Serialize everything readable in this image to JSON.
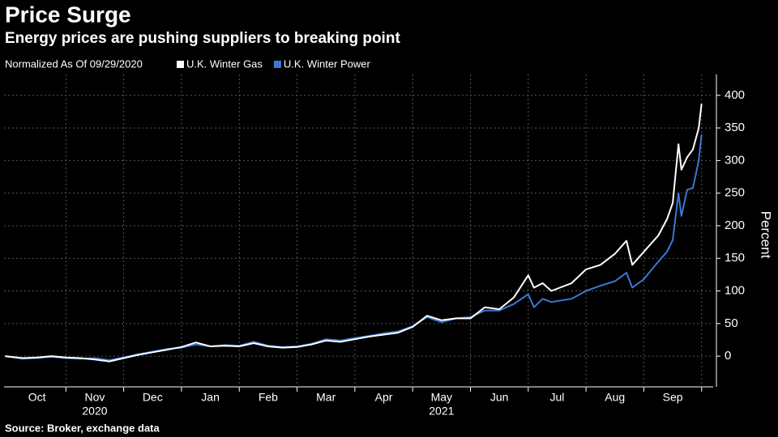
{
  "chart_data": {
    "type": "line",
    "title": "Price Surge",
    "subtitle": "Energy prices are pushing suppliers to breaking point",
    "legend_title": "Normalized As Of 09/29/2020",
    "y_label": "Percent",
    "source": "Source: Broker, exchange data",
    "categories": [
      "Oct",
      "Nov",
      "Dec",
      "Jan",
      "Feb",
      "Mar",
      "Apr",
      "May",
      "Jun",
      "Jul",
      "Aug",
      "Sep"
    ],
    "year_labels": [
      null,
      "2020",
      null,
      null,
      null,
      null,
      null,
      "2021",
      null,
      null,
      null,
      null
    ],
    "x": [
      -0.05,
      0.25,
      0.5,
      0.75,
      1,
      1.25,
      1.5,
      1.75,
      2,
      2.25,
      2.5,
      2.75,
      3,
      3.25,
      3.5,
      3.75,
      4,
      4.25,
      4.5,
      4.75,
      5,
      5.25,
      5.5,
      5.75,
      6,
      6.25,
      6.5,
      6.75,
      7,
      7.25,
      7.5,
      7.75,
      8,
      8.25,
      8.5,
      8.75,
      9,
      9.1,
      9.25,
      9.4,
      9.75,
      10,
      10.25,
      10.5,
      10.7,
      10.8,
      11,
      11.25,
      11.4,
      11.5,
      11.6,
      11.65,
      11.75,
      11.85,
      11.95,
      12
    ],
    "xlim": [
      -0.07,
      12.2
    ],
    "series": [
      {
        "name": "U.K. Winter Gas",
        "color": "#ffffff",
        "values": [
          0,
          -3,
          -2,
          0,
          -2,
          -3,
          -5,
          -8,
          -3,
          2,
          6,
          10,
          14,
          21,
          15,
          16,
          15,
          20,
          15,
          13,
          14,
          18,
          24,
          22,
          26,
          30,
          33,
          36,
          45,
          62,
          55,
          58,
          58,
          75,
          72,
          90,
          124,
          105,
          112,
          100,
          112,
          133,
          140,
          157,
          177,
          140,
          160,
          185,
          210,
          235,
          325,
          286,
          305,
          317,
          350,
          387
        ]
      },
      {
        "name": "U.K. Winter Power",
        "color": "#3a78d4",
        "values": [
          0,
          -4,
          -3,
          -1,
          -3,
          -4,
          -3,
          -6,
          -2,
          3,
          7,
          11,
          13,
          18,
          15,
          17,
          16,
          22,
          16,
          14,
          15,
          19,
          26,
          24,
          28,
          31,
          35,
          38,
          46,
          60,
          52,
          58,
          60,
          70,
          70,
          80,
          95,
          75,
          88,
          83,
          88,
          100,
          108,
          115,
          128,
          105,
          118,
          145,
          160,
          178,
          250,
          215,
          255,
          258,
          300,
          340
        ]
      }
    ],
    "ylim": [
      -47,
      432
    ],
    "yticks": [
      0,
      50,
      100,
      150,
      200,
      250,
      300,
      350,
      400
    ],
    "grid": true
  }
}
